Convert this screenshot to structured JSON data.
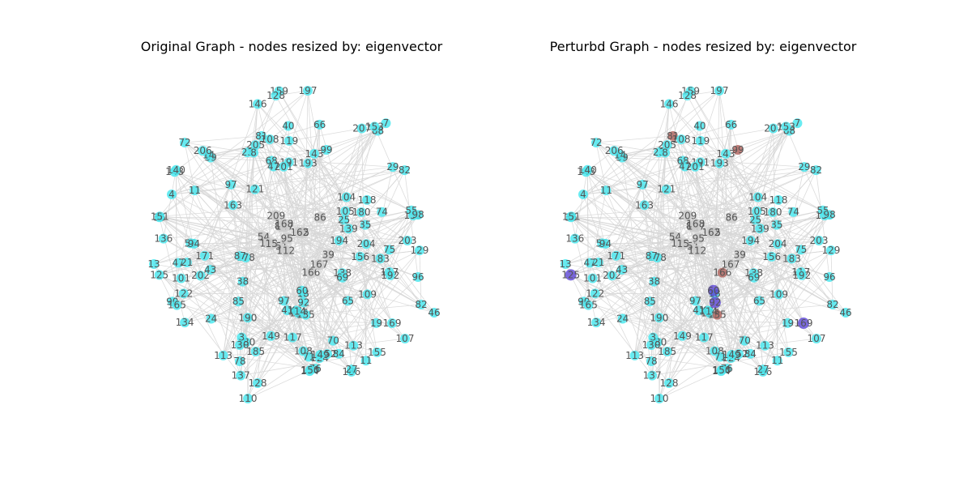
{
  "panels": [
    {
      "title": "Original Graph - nodes resized by: eigenvector"
    },
    {
      "title": "Perturbd Graph - nodes resized by: eigenvector"
    }
  ],
  "colors": {
    "node": "#4de8ee",
    "hub": "#cccccc",
    "edge": "#d6d6d6",
    "label": "#555555",
    "increased": "#5b45d6",
    "decreased": "#b0605a"
  },
  "graph": {
    "nodes": [
      {
        "id": "197"
      },
      {
        "id": "178"
      },
      {
        "id": "191"
      },
      {
        "id": "105"
      },
      {
        "id": "45"
      },
      {
        "id": "207"
      },
      {
        "id": "127"
      },
      {
        "id": "72"
      },
      {
        "id": "171"
      },
      {
        "id": "97"
      },
      {
        "id": "18"
      },
      {
        "id": "84"
      },
      {
        "id": "148"
      },
      {
        "id": "60"
      },
      {
        "id": "65"
      },
      {
        "id": "59"
      },
      {
        "id": "204"
      },
      {
        "id": "180"
      },
      {
        "id": "89"
      },
      {
        "id": "190"
      },
      {
        "id": "68"
      },
      {
        "id": "108"
      },
      {
        "id": "82"
      },
      {
        "id": "36"
      },
      {
        "id": "205"
      },
      {
        "id": "54"
      },
      {
        "id": "124"
      },
      {
        "id": "43"
      },
      {
        "id": "185"
      },
      {
        "id": "146"
      },
      {
        "id": "147"
      },
      {
        "id": "152"
      },
      {
        "id": "51"
      },
      {
        "id": "92"
      },
      {
        "id": "193"
      },
      {
        "id": "118"
      },
      {
        "id": "88"
      },
      {
        "id": "85"
      },
      {
        "id": "140"
      },
      {
        "id": "109"
      },
      {
        "id": "129"
      },
      {
        "id": "4"
      },
      {
        "id": "166"
      },
      {
        "id": "71"
      },
      {
        "id": "117"
      },
      {
        "id": "122"
      },
      {
        "id": "202"
      },
      {
        "id": "14"
      },
      {
        "id": "209"
      },
      {
        "id": "47"
      },
      {
        "id": "206"
      },
      {
        "id": "168"
      },
      {
        "id": "159"
      },
      {
        "id": "180"
      },
      {
        "id": "90"
      },
      {
        "id": "95"
      },
      {
        "id": "41"
      },
      {
        "id": "11"
      },
      {
        "id": "128"
      },
      {
        "id": "149"
      },
      {
        "id": "101"
      },
      {
        "id": "143"
      },
      {
        "id": "70"
      },
      {
        "id": "132"
      },
      {
        "id": "165"
      },
      {
        "id": "138"
      },
      {
        "id": "167"
      },
      {
        "id": "40"
      },
      {
        "id": "135"
      },
      {
        "id": "122"
      },
      {
        "id": "23"
      },
      {
        "id": "113"
      },
      {
        "id": "81"
      },
      {
        "id": "203"
      },
      {
        "id": "7"
      },
      {
        "id": "86"
      },
      {
        "id": "15"
      },
      {
        "id": "66"
      },
      {
        "id": "119"
      },
      {
        "id": "194"
      },
      {
        "id": "43"
      },
      {
        "id": "151"
      },
      {
        "id": "13"
      },
      {
        "id": "192"
      },
      {
        "id": "25"
      },
      {
        "id": "153"
      },
      {
        "id": "186"
      },
      {
        "id": "76"
      },
      {
        "id": "8"
      },
      {
        "id": "96"
      },
      {
        "id": "47"
      },
      {
        "id": "19"
      },
      {
        "id": "117"
      },
      {
        "id": "99"
      },
      {
        "id": "55"
      },
      {
        "id": "121"
      },
      {
        "id": "74"
      },
      {
        "id": "162"
      },
      {
        "id": "69"
      },
      {
        "id": "156"
      },
      {
        "id": "24"
      },
      {
        "id": "56"
      },
      {
        "id": "75"
      },
      {
        "id": "11"
      },
      {
        "id": "29"
      },
      {
        "id": "149"
      },
      {
        "id": "201"
      },
      {
        "id": "39"
      },
      {
        "id": "113"
      },
      {
        "id": "27"
      },
      {
        "id": "104"
      },
      {
        "id": "108"
      },
      {
        "id": "174"
      },
      {
        "id": "82"
      },
      {
        "id": "46"
      },
      {
        "id": "21"
      },
      {
        "id": "3"
      },
      {
        "id": "136"
      },
      {
        "id": "38"
      },
      {
        "id": "125"
      },
      {
        "id": "114"
      },
      {
        "id": "155"
      },
      {
        "id": "169"
      },
      {
        "id": "94"
      },
      {
        "id": "112"
      },
      {
        "id": "183"
      },
      {
        "id": "97"
      },
      {
        "id": "163"
      },
      {
        "id": "98"
      },
      {
        "id": "35"
      },
      {
        "id": "107"
      },
      {
        "id": "130"
      },
      {
        "id": "137"
      },
      {
        "id": "150"
      },
      {
        "id": "139"
      },
      {
        "id": "78"
      },
      {
        "id": "87"
      },
      {
        "id": "134"
      },
      {
        "id": "128"
      },
      {
        "id": "110"
      }
    ],
    "perturbed_marks": [
      {
        "node": "60",
        "change": "increased"
      },
      {
        "node": "92",
        "change": "increased"
      },
      {
        "node": "125",
        "change": "increased"
      },
      {
        "node": "169",
        "change": "increased"
      },
      {
        "node": "166",
        "change": "decreased"
      },
      {
        "node": "135",
        "change": "decreased"
      },
      {
        "node": "81",
        "change": "decreased"
      },
      {
        "node": "99",
        "change": "decreased"
      }
    ]
  }
}
